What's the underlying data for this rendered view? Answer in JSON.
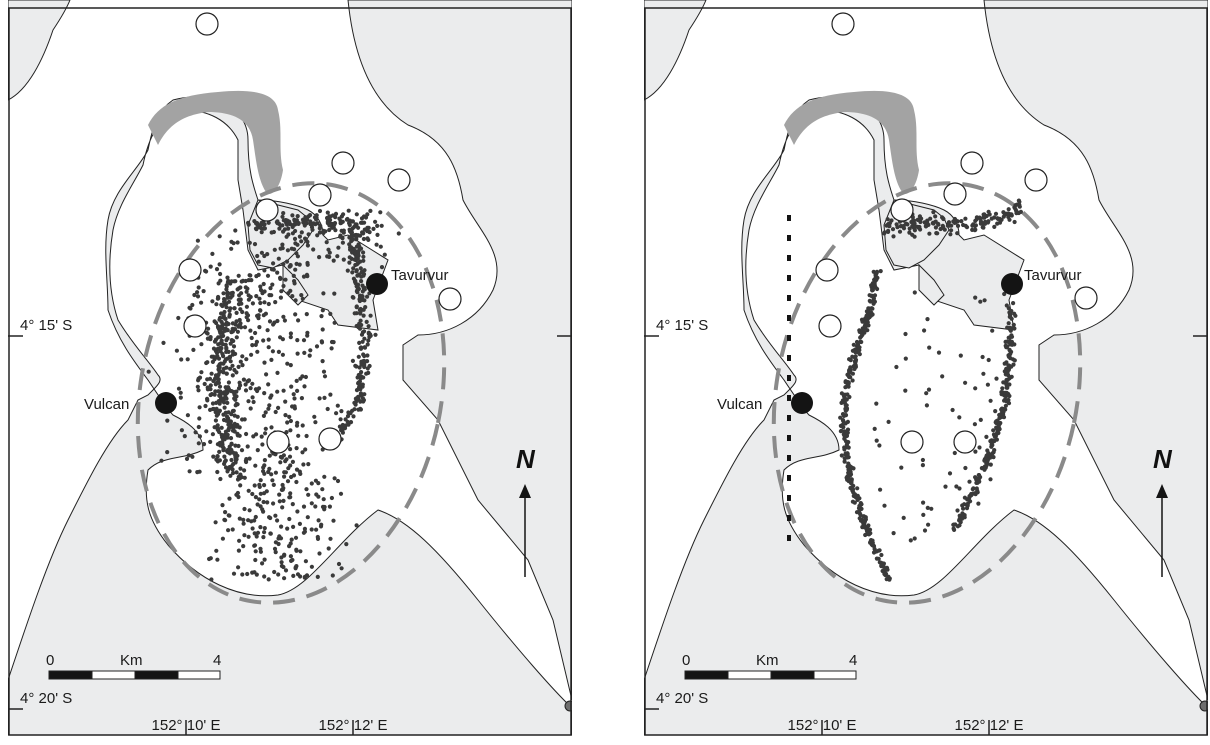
{
  "colors": {
    "land": "#ebeced",
    "water": "#ffffff",
    "shoal": "#a3a3a3",
    "caldera_rim": "#8a8a8a",
    "quake": "#3a3a3a",
    "volcano": "#141414",
    "frame": "#222222"
  },
  "panels": [
    {
      "id": "left",
      "volcano_labels": {
        "east": "Tavurvur",
        "west": "Vulcan"
      },
      "lat_labels": {
        "upper": "4° 15' S",
        "lower": "4° 20' S"
      },
      "lon_labels": {
        "west": "152° 10' E",
        "east": "152° 12' E"
      },
      "scale_bar": {
        "start": "0",
        "unit": "Km",
        "end": "4"
      },
      "north_label": "N",
      "seismicity_pattern": "broad ring-fault cloud"
    },
    {
      "id": "right",
      "volcano_labels": {
        "east": "Tavurvur",
        "west": "Vulcan"
      },
      "lat_labels": {
        "upper": "4° 15' S",
        "lower": "4° 20' S"
      },
      "lon_labels": {
        "west": "152° 10' E",
        "east": "152° 12' E"
      },
      "scale_bar": {
        "start": "0",
        "unit": "Km",
        "end": "4"
      },
      "north_label": "N",
      "seismicity_pattern": "narrow ring-fault arcs"
    }
  ]
}
